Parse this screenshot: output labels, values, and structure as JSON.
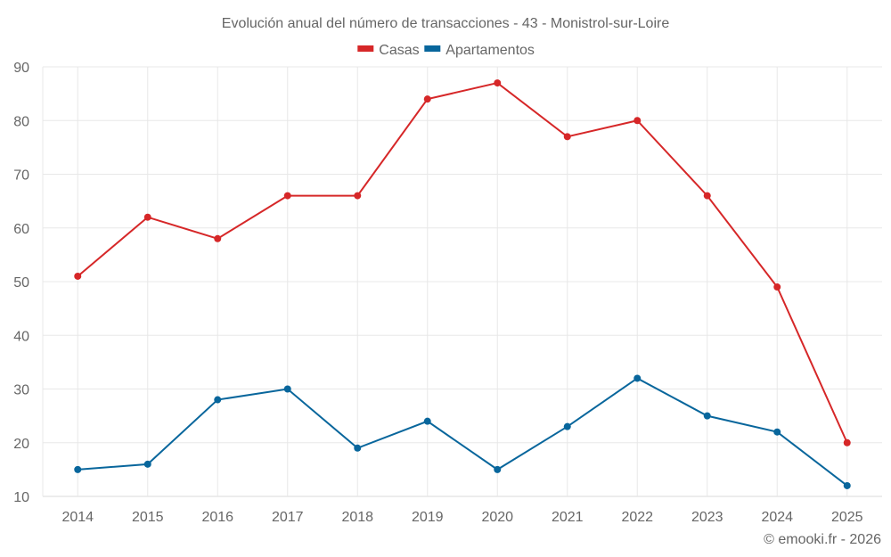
{
  "chart_data": {
    "type": "line",
    "title": "Evolución anual del número de transacciones - 43 - Monistrol-sur-Loire",
    "xlabel": "",
    "ylabel": "",
    "x": [
      "2014",
      "2015",
      "2016",
      "2017",
      "2018",
      "2019",
      "2020",
      "2021",
      "2022",
      "2023",
      "2024",
      "2025"
    ],
    "ylim": [
      10,
      90
    ],
    "yticks": [
      10,
      20,
      30,
      40,
      50,
      60,
      70,
      80,
      90
    ],
    "grid": true,
    "legend_position": "top-center",
    "series": [
      {
        "name": "Casas",
        "color": "#d62728",
        "values": [
          51,
          62,
          58,
          66,
          66,
          84,
          87,
          77,
          80,
          66,
          49,
          20
        ]
      },
      {
        "name": "Apartamentos",
        "color": "#08669c",
        "values": [
          15,
          16,
          28,
          30,
          19,
          24,
          15,
          23,
          32,
          25,
          22,
          12
        ]
      }
    ]
  },
  "credit": "© emooki.fr - 2026"
}
